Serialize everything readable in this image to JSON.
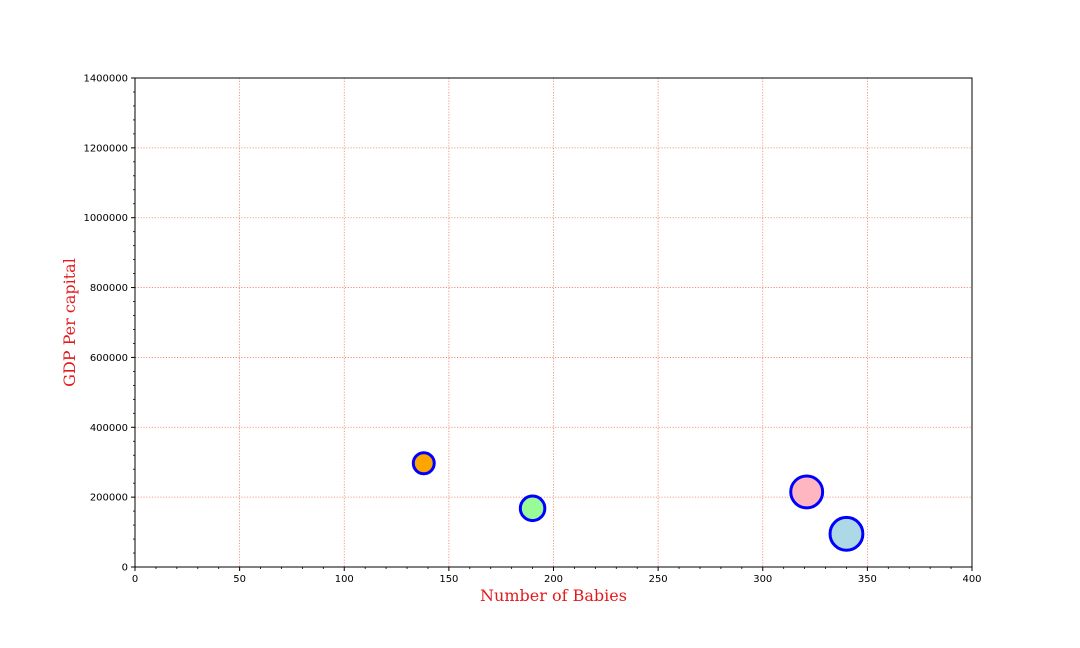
{
  "chart_data": {
    "type": "scatter",
    "title": "",
    "xlabel": "Number of Babies",
    "ylabel": "GDP Per capital",
    "xlim": [
      0,
      400
    ],
    "ylim": [
      0,
      1400000
    ],
    "xticks": [
      0,
      50,
      100,
      150,
      200,
      250,
      300,
      350,
      400
    ],
    "yticks": [
      0,
      200000,
      400000,
      600000,
      800000,
      1000000,
      1200000,
      1400000
    ],
    "xtick_labels": [
      "0",
      "50",
      "100",
      "150",
      "200",
      "250",
      "300",
      "350",
      "400"
    ],
    "ytick_labels": [
      "0",
      "200000",
      "400000",
      "600000",
      "800000",
      "1000000",
      "1200000",
      "1400000"
    ],
    "grid": true,
    "points": [
      {
        "x": 138,
        "y": 297000,
        "size": 138,
        "fill": "#ffa500"
      },
      {
        "x": 190,
        "y": 168000,
        "size": 190,
        "fill": "#98fb98"
      },
      {
        "x": 321,
        "y": 215000,
        "size": 321,
        "fill": "#ffb6c1"
      },
      {
        "x": 340,
        "y": 95000,
        "size": 340,
        "fill": "#add8e6"
      }
    ],
    "colors": {
      "marker_edge": "#0000ff",
      "grid": "#f08060",
      "axis_label": "#e31a1c",
      "axis": "#000000"
    }
  }
}
